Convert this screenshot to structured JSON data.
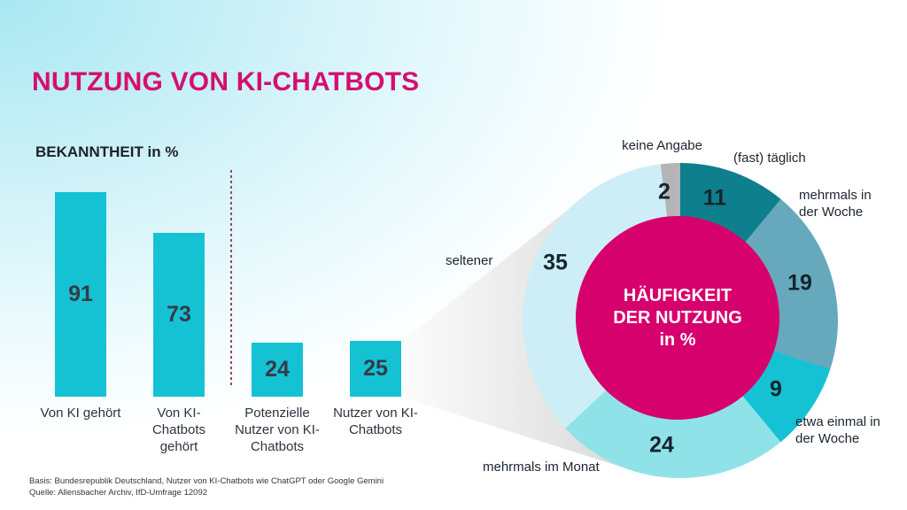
{
  "page": {
    "title": "NUTZUNG VON KI-CHATBOTS",
    "footer": {
      "line1": "Basis: Bundesrepublik Deutschland, Nutzer von KI-Chatbots wie ChatGPT oder Google Gemini",
      "line2": "Quelle: Allensbacher Archiv, IfD-Umfrage 12092"
    }
  },
  "colors": {
    "brand_magenta": "#d6016c",
    "title_magenta": "#d60e6f",
    "bar_cyan": "#15c2d4",
    "divider_red": "#9a4a55",
    "funnel_gray": "#dcdcdc",
    "background_tint": "#a9e8f2",
    "text_dark": "#1c2530"
  },
  "donut_center": {
    "line1": "HÄUFIGKEIT",
    "line2": "DER NUTZUNG",
    "line3": "in %"
  },
  "chart_data": [
    {
      "type": "bar",
      "title": "BEKANNTHEIT in %",
      "categories": [
        "Von KI gehört",
        "Von KI-Chatbots gehört",
        "Potenzielle Nutzer von KI-Chatbots",
        "Nutzer von KI-Chatbots"
      ],
      "values": [
        91,
        73,
        24,
        25
      ],
      "unit": "%",
      "ylim": [
        0,
        100
      ],
      "xlabel": "",
      "ylabel": "",
      "grid": false,
      "bar_color": "#15c2d4",
      "divider_after_category_index": 1
    },
    {
      "type": "pie",
      "subtype": "donut",
      "title": "HÄUFIGKEIT DER NUTZUNG in %",
      "start_angle_deg": 0,
      "direction": "clockwise",
      "center_color": "#d6016c",
      "segments": [
        {
          "label": "(fast) täglich",
          "value": 11,
          "color": "#0e7f8c"
        },
        {
          "label": "mehrmals in der Woche",
          "value": 19,
          "color": "#66a9bd"
        },
        {
          "label": "etwa einmal in der Woche",
          "value": 9,
          "color": "#15c2d4"
        },
        {
          "label": "mehrmals im Monat",
          "value": 24,
          "color": "#90e2e9"
        },
        {
          "label": "seltener",
          "value": 35,
          "color": "#cdeef6"
        },
        {
          "label": "keine Angabe",
          "value": 2,
          "color": "#b5b5b7"
        }
      ]
    }
  ]
}
